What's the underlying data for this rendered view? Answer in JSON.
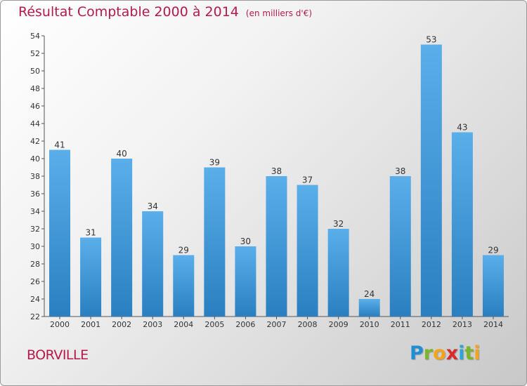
{
  "header": {
    "title": "Résultat Comptable 2000 à 2014",
    "unit": "(en milliers d'€)"
  },
  "footer": {
    "commune": "BORVILLE",
    "brand_letters": [
      {
        "char": "P",
        "color": "#1e8fd6"
      },
      {
        "char": "r",
        "color": "#7cb52a"
      },
      {
        "char": "o",
        "color": "#f2a51a"
      },
      {
        "char": "x",
        "color": "#d92b2b"
      },
      {
        "char": "i",
        "color": "#2aa6d6"
      },
      {
        "char": "t",
        "color": "#7cb52a"
      },
      {
        "char": "i",
        "color": "#f2a51a"
      }
    ]
  },
  "chart_data": {
    "type": "bar",
    "title": "Résultat Comptable 2000 à 2014",
    "subtitle": "(en milliers d'€)",
    "xlabel": "",
    "ylabel": "",
    "categories": [
      "2000",
      "2001",
      "2002",
      "2003",
      "2004",
      "2005",
      "2006",
      "2007",
      "2008",
      "2009",
      "2010",
      "2011",
      "2012",
      "2013",
      "2014"
    ],
    "values": [
      41,
      31,
      40,
      34,
      29,
      39,
      30,
      38,
      37,
      32,
      24,
      38,
      53,
      43,
      29
    ],
    "ylim": [
      22,
      54
    ],
    "yticks": [
      22,
      24,
      26,
      28,
      30,
      32,
      34,
      36,
      38,
      40,
      42,
      44,
      46,
      48,
      50,
      52,
      54
    ],
    "grid": false,
    "bar_color_top": "#5aaeea",
    "bar_color_bottom": "#2a7fc0"
  }
}
